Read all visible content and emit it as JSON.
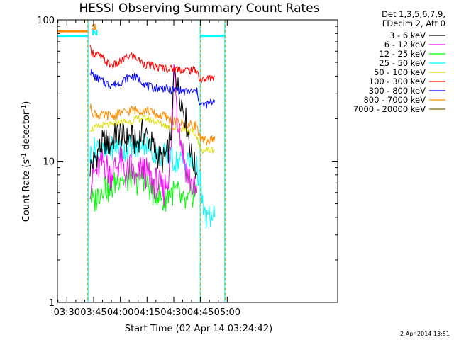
{
  "chart_data": {
    "type": "line",
    "title": "HESSI Observing Summary Count Rates",
    "xlabel": "Start Time (02-Apr-14 03:24:42)",
    "ylabel_main": "Count Rate (s",
    "ylabel_sup1": "-1",
    "ylabel_mid": " detector",
    "ylabel_sup2": "-1",
    "ylabel_end": ")",
    "y_scale": "log",
    "ylim": [
      1,
      100
    ],
    "xlim_min": [
      204.7,
      362
    ],
    "x_ticks": [
      {
        "value": 210,
        "label": "03:30"
      },
      {
        "value": 225,
        "label": "03:45"
      },
      {
        "value": 240,
        "label": "04:00"
      },
      {
        "value": 255,
        "label": "04:15"
      },
      {
        "value": 270,
        "label": "04:30"
      },
      {
        "value": 285,
        "label": "04:45"
      },
      {
        "value": 300,
        "label": "05:00"
      }
    ],
    "y_ticks": [
      {
        "value": 1,
        "label": "1"
      },
      {
        "value": 10,
        "label": "10"
      },
      {
        "value": 100,
        "label": "100"
      }
    ],
    "legend_header": [
      "Det 1,3,5,6,7,9,",
      "FDecim 2, Att 0"
    ],
    "legend_placement": "right",
    "flags": [
      {
        "label": "S",
        "value": 83,
        "color": "#ff8c00"
      },
      {
        "label": "N",
        "value": 77,
        "color": "#00ffff"
      }
    ],
    "series": [
      {
        "name": "3 - 6 keV",
        "color": "#000000",
        "points": [
          [
            223,
            9
          ],
          [
            225,
            10
          ],
          [
            228,
            12
          ],
          [
            231,
            14
          ],
          [
            234,
            13
          ],
          [
            237,
            15
          ],
          [
            240,
            16
          ],
          [
            243,
            14
          ],
          [
            246,
            15
          ],
          [
            249,
            13
          ],
          [
            252,
            16
          ],
          [
            255,
            15
          ],
          [
            258,
            13
          ],
          [
            261,
            11
          ],
          [
            264,
            10
          ],
          [
            267,
            12
          ],
          [
            269,
            18
          ],
          [
            270,
            40
          ],
          [
            271,
            44
          ],
          [
            272,
            34
          ],
          [
            274,
            28
          ],
          [
            276,
            22
          ],
          [
            278,
            16
          ],
          [
            280,
            11
          ],
          [
            282,
            9
          ],
          [
            283,
            8
          ]
        ]
      },
      {
        "name": "6 - 12 keV",
        "color": "#ff00ff",
        "points": [
          [
            223,
            7
          ],
          [
            225,
            8
          ],
          [
            228,
            9
          ],
          [
            231,
            10
          ],
          [
            234,
            8
          ],
          [
            237,
            9
          ],
          [
            240,
            10
          ],
          [
            243,
            8
          ],
          [
            246,
            9
          ],
          [
            249,
            7
          ],
          [
            252,
            9
          ],
          [
            255,
            8
          ],
          [
            258,
            7
          ],
          [
            261,
            7
          ],
          [
            264,
            6
          ],
          [
            267,
            8
          ],
          [
            269,
            14
          ],
          [
            270,
            46
          ],
          [
            271,
            38
          ],
          [
            272,
            22
          ],
          [
            274,
            14
          ],
          [
            276,
            10
          ],
          [
            278,
            8
          ],
          [
            280,
            7
          ],
          [
            282,
            6
          ],
          [
            283,
            6
          ]
        ]
      },
      {
        "name": "12 - 25 keV",
        "color": "#00ff00",
        "points": [
          [
            223,
            6
          ],
          [
            225,
            5
          ],
          [
            228,
            6
          ],
          [
            231,
            7
          ],
          [
            234,
            6
          ],
          [
            237,
            7
          ],
          [
            240,
            8
          ],
          [
            243,
            7
          ],
          [
            246,
            8
          ],
          [
            249,
            7
          ],
          [
            252,
            8
          ],
          [
            255,
            7
          ],
          [
            258,
            6
          ],
          [
            261,
            6
          ],
          [
            264,
            5
          ],
          [
            267,
            6
          ],
          [
            269,
            6
          ],
          [
            272,
            6
          ],
          [
            275,
            5
          ],
          [
            278,
            5
          ],
          [
            281,
            6
          ],
          [
            283,
            6
          ]
        ]
      },
      {
        "name": "25 - 50 keV",
        "color": "#00ffff",
        "points": [
          [
            223,
            11
          ],
          [
            225,
            12
          ],
          [
            228,
            13
          ],
          [
            231,
            11
          ],
          [
            234,
            12
          ],
          [
            237,
            13
          ],
          [
            240,
            12
          ],
          [
            243,
            12
          ],
          [
            246,
            13
          ],
          [
            249,
            12
          ],
          [
            252,
            14
          ],
          [
            255,
            13
          ],
          [
            258,
            12
          ],
          [
            261,
            11
          ],
          [
            264,
            11
          ],
          [
            267,
            11
          ],
          [
            270,
            10
          ],
          [
            273,
            10
          ],
          [
            276,
            10
          ],
          [
            279,
            10
          ],
          [
            282,
            9
          ],
          [
            283,
            9
          ],
          [
            285,
            7
          ],
          [
            287,
            4
          ],
          [
            289,
            4
          ],
          [
            291,
            4
          ],
          [
            293,
            4
          ]
        ]
      },
      {
        "name": "50 - 100 keV",
        "color": "#dddd00",
        "points": [
          [
            223,
            17
          ],
          [
            225,
            17
          ],
          [
            230,
            18
          ],
          [
            235,
            18
          ],
          [
            240,
            19
          ],
          [
            245,
            19
          ],
          [
            250,
            20
          ],
          [
            255,
            20
          ],
          [
            260,
            19
          ],
          [
            265,
            18
          ],
          [
            270,
            17
          ],
          [
            275,
            17
          ],
          [
            280,
            16
          ],
          [
            283,
            15
          ],
          [
            285,
            12
          ],
          [
            290,
            12
          ],
          [
            293,
            12
          ]
        ]
      },
      {
        "name": "100 - 300 keV",
        "color": "#ff0000",
        "points": [
          [
            223,
            62
          ],
          [
            225,
            58
          ],
          [
            228,
            56
          ],
          [
            231,
            52
          ],
          [
            234,
            48
          ],
          [
            237,
            48
          ],
          [
            240,
            50
          ],
          [
            243,
            54
          ],
          [
            246,
            56
          ],
          [
            249,
            54
          ],
          [
            252,
            50
          ],
          [
            255,
            48
          ],
          [
            258,
            47
          ],
          [
            261,
            46
          ],
          [
            264,
            46
          ],
          [
            267,
            45
          ],
          [
            270,
            45
          ],
          [
            273,
            45
          ],
          [
            276,
            44
          ],
          [
            279,
            44
          ],
          [
            282,
            44
          ],
          [
            283,
            44
          ],
          [
            285,
            37
          ],
          [
            288,
            38
          ],
          [
            291,
            39
          ],
          [
            293,
            40
          ]
        ]
      },
      {
        "name": "300 - 800 keV",
        "color": "#0000ff",
        "points": [
          [
            223,
            44
          ],
          [
            225,
            40
          ],
          [
            228,
            38
          ],
          [
            231,
            36
          ],
          [
            234,
            35
          ],
          [
            237,
            35
          ],
          [
            240,
            36
          ],
          [
            243,
            38
          ],
          [
            246,
            40
          ],
          [
            249,
            39
          ],
          [
            252,
            37
          ],
          [
            255,
            34
          ],
          [
            258,
            33
          ],
          [
            261,
            33
          ],
          [
            264,
            33
          ],
          [
            267,
            32
          ],
          [
            270,
            32
          ],
          [
            273,
            32
          ],
          [
            276,
            31
          ],
          [
            279,
            31
          ],
          [
            282,
            31
          ],
          [
            283,
            31
          ],
          [
            285,
            25
          ],
          [
            288,
            25
          ],
          [
            291,
            26
          ],
          [
            293,
            27
          ]
        ]
      },
      {
        "name": "800 - 7000 keV",
        "color": "#ff8c00",
        "points": [
          [
            223,
            24
          ],
          [
            225,
            22
          ],
          [
            228,
            21
          ],
          [
            231,
            21
          ],
          [
            234,
            21
          ],
          [
            237,
            21
          ],
          [
            240,
            22
          ],
          [
            243,
            22
          ],
          [
            246,
            23
          ],
          [
            249,
            23
          ],
          [
            252,
            23
          ],
          [
            255,
            23
          ],
          [
            258,
            22
          ],
          [
            261,
            21
          ],
          [
            264,
            21
          ],
          [
            267,
            20
          ],
          [
            270,
            19
          ],
          [
            273,
            19
          ],
          [
            276,
            18
          ],
          [
            279,
            18
          ],
          [
            282,
            18
          ],
          [
            283,
            18
          ],
          [
            285,
            14
          ],
          [
            288,
            14
          ],
          [
            291,
            14
          ],
          [
            293,
            15
          ]
        ]
      },
      {
        "name": "7000 - 20000 keV",
        "color": "#8b6508",
        "points": []
      }
    ],
    "step_lines": [
      {
        "color": "#ff8c00",
        "points": [
          [
            204.7,
            83
          ],
          [
            221.5,
            83
          ]
        ]
      },
      {
        "color": "#00ffff",
        "points": [
          [
            204.7,
            77
          ],
          [
            221.5,
            77
          ]
        ]
      },
      {
        "color": "#00ffff",
        "points": [
          [
            285.2,
            77
          ],
          [
            298.8,
            77
          ]
        ]
      }
    ],
    "markers": [
      {
        "value": 221.5,
        "color": "#ff8c00",
        "style": "dashed"
      },
      {
        "value": 221.9,
        "color": "#00ffff",
        "style": "solid"
      },
      {
        "value": 284.8,
        "color": "#00ffff",
        "style": "solid"
      },
      {
        "value": 285.2,
        "color": "#ff8c00",
        "style": "dashed"
      },
      {
        "value": 298.6,
        "color": "#00ffff",
        "style": "solid"
      },
      {
        "value": 299.0,
        "color": "#ff8c00",
        "style": "dashed"
      }
    ]
  },
  "timestamp": "2-Apr-2014 13:51"
}
